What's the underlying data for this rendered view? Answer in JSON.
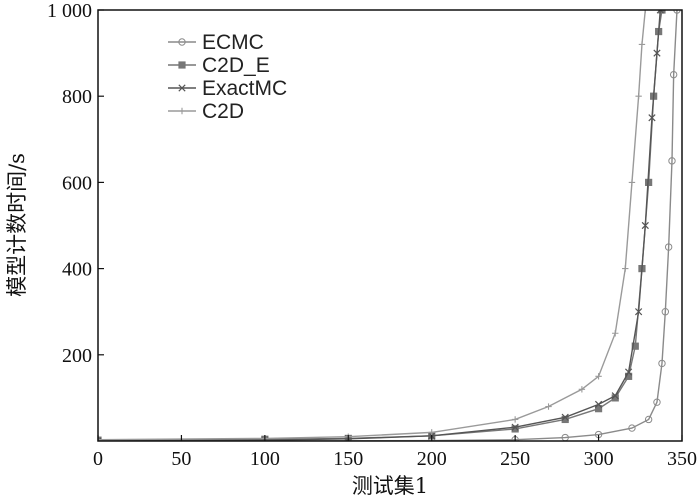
{
  "chart_data": {
    "type": "line",
    "title": "",
    "xlabel": "测试集1",
    "ylabel": "模型计数时间/s",
    "xlim": [
      0,
      350
    ],
    "ylim": [
      0,
      1000
    ],
    "x_ticks": [
      "0",
      "50",
      "100",
      "150",
      "200",
      "250",
      "300",
      "350"
    ],
    "y_ticks": [
      "200",
      "400",
      "600",
      "800",
      "1 000"
    ],
    "x_tick_values": [
      0,
      50,
      100,
      150,
      200,
      250,
      300,
      350
    ],
    "y_tick_values": [
      200,
      400,
      600,
      800,
      1000
    ],
    "grid": false,
    "legend_position": "top-left",
    "series": [
      {
        "name": "ECMC",
        "marker": "circle",
        "color": "#8a8a8a",
        "x": [
          0,
          100,
          200,
          250,
          280,
          300,
          320,
          330,
          335,
          338,
          340,
          342,
          344,
          345,
          347
        ],
        "y": [
          0,
          0,
          1,
          3,
          8,
          15,
          30,
          50,
          90,
          180,
          300,
          450,
          650,
          850,
          1000
        ]
      },
      {
        "name": "C2D_E",
        "marker": "square",
        "color": "#777777",
        "x": [
          0,
          100,
          150,
          200,
          250,
          280,
          300,
          310,
          318,
          322,
          326,
          330,
          333,
          336,
          338
        ],
        "y": [
          2,
          4,
          6,
          12,
          28,
          50,
          75,
          100,
          150,
          220,
          400,
          600,
          800,
          950,
          1000
        ]
      },
      {
        "name": "ExactMC",
        "marker": "x",
        "color": "#555555",
        "x": [
          0,
          100,
          150,
          200,
          250,
          280,
          300,
          310,
          318,
          324,
          328,
          332,
          335,
          337
        ],
        "y": [
          0,
          2,
          5,
          12,
          32,
          55,
          85,
          105,
          160,
          300,
          500,
          750,
          900,
          1000
        ]
      },
      {
        "name": "C2D",
        "marker": "plus",
        "color": "#9a9a9a",
        "x": [
          0,
          100,
          150,
          200,
          250,
          270,
          290,
          300,
          310,
          316,
          320,
          324,
          326,
          328
        ],
        "y": [
          3,
          6,
          10,
          20,
          50,
          80,
          120,
          150,
          250,
          400,
          600,
          800,
          920,
          1000
        ]
      }
    ]
  }
}
